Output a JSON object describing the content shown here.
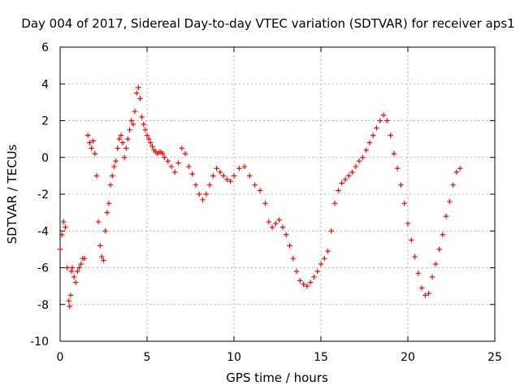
{
  "chart_data": {
    "type": "scatter",
    "title": "Day 004 of 2017, Sidereal Day-to-day VTEC variation (SDTVAR) for receiver aps1",
    "xlabel": "GPS time / hours",
    "ylabel": "SDTVAR / TECUs",
    "xlim": [
      0,
      25
    ],
    "ylim": [
      -10,
      6
    ],
    "xticks": [
      "0",
      "5",
      "10",
      "15",
      "20",
      "25"
    ],
    "yticks": [
      "-10",
      "-8",
      "-6",
      "-4",
      "-2",
      "0",
      "2",
      "4",
      "6"
    ],
    "grid": true,
    "marker": "+",
    "color": "#ff0000",
    "series": [
      {
        "name": "aps1",
        "x": [
          0.0,
          0.1,
          0.2,
          0.3,
          0.4,
          0.5,
          0.55,
          0.6,
          0.65,
          0.7,
          0.8,
          0.9,
          1.0,
          1.1,
          1.2,
          1.3,
          1.4,
          1.6,
          1.7,
          1.8,
          1.9,
          2.0,
          2.1,
          2.2,
          2.3,
          2.4,
          2.5,
          2.6,
          2.7,
          2.8,
          2.9,
          3.0,
          3.1,
          3.2,
          3.3,
          3.4,
          3.5,
          3.6,
          3.7,
          3.8,
          3.9,
          4.0,
          4.1,
          4.2,
          4.3,
          4.4,
          4.5,
          4.6,
          4.7,
          4.8,
          4.9,
          5.0,
          5.1,
          5.2,
          5.3,
          5.4,
          5.5,
          5.6,
          5.7,
          5.8,
          5.9,
          6.0,
          6.2,
          6.4,
          6.6,
          6.8,
          7.0,
          7.2,
          7.4,
          7.6,
          7.8,
          8.0,
          8.2,
          8.4,
          8.6,
          8.8,
          9.0,
          9.2,
          9.4,
          9.6,
          9.8,
          10.0,
          10.3,
          10.6,
          10.9,
          11.2,
          11.5,
          11.8,
          12.0,
          12.2,
          12.4,
          12.6,
          12.8,
          13.0,
          13.2,
          13.4,
          13.6,
          13.8,
          14.0,
          14.2,
          14.4,
          14.6,
          14.8,
          15.0,
          15.2,
          15.4,
          15.6,
          15.8,
          16.0,
          16.2,
          16.4,
          16.6,
          16.8,
          17.0,
          17.2,
          17.4,
          17.6,
          17.8,
          18.0,
          18.2,
          18.4,
          18.6,
          18.8,
          19.0,
          19.2,
          19.4,
          19.6,
          19.8,
          20.0,
          20.2,
          20.4,
          20.6,
          20.8,
          21.0,
          21.2,
          21.4,
          21.6,
          21.8,
          22.0,
          22.2,
          22.4,
          22.6,
          22.8,
          23.0
        ],
        "y": [
          -5.0,
          -4.2,
          -3.5,
          -3.8,
          -6.0,
          -7.8,
          -8.1,
          -7.5,
          -6.2,
          -6.0,
          -6.5,
          -6.8,
          -6.2,
          -6.0,
          -5.8,
          -5.5,
          -5.5,
          1.2,
          0.8,
          0.5,
          0.9,
          0.2,
          -1.0,
          -3.5,
          -4.8,
          -5.4,
          -5.6,
          -4.0,
          -3.0,
          -2.5,
          -1.5,
          -1.0,
          -0.5,
          -0.2,
          0.5,
          1.0,
          1.2,
          0.8,
          0.0,
          0.5,
          1.0,
          1.5,
          2.0,
          1.8,
          2.5,
          3.5,
          3.8,
          3.2,
          2.2,
          1.8,
          1.5,
          1.2,
          1.0,
          0.8,
          0.6,
          0.4,
          0.3,
          0.2,
          0.3,
          0.3,
          0.2,
          0.0,
          -0.2,
          -0.5,
          -0.8,
          -0.3,
          0.5,
          0.2,
          -0.5,
          -0.9,
          -1.5,
          -2.0,
          -2.3,
          -2.0,
          -1.5,
          -1.0,
          -0.6,
          -0.8,
          -1.0,
          -1.2,
          -1.3,
          -1.0,
          -0.6,
          -0.5,
          -1.0,
          -1.5,
          -1.8,
          -2.5,
          -3.5,
          -3.8,
          -3.6,
          -3.4,
          -3.8,
          -4.2,
          -4.8,
          -5.5,
          -6.2,
          -6.7,
          -6.9,
          -7.0,
          -6.8,
          -6.5,
          -6.2,
          -5.8,
          -5.5,
          -5.1,
          -4.0,
          -2.5,
          -1.8,
          -1.4,
          -1.2,
          -1.0,
          -0.8,
          -0.5,
          -0.2,
          0.0,
          0.4,
          0.8,
          1.2,
          1.6,
          2.0,
          2.3,
          2.0,
          1.2,
          0.2,
          -0.6,
          -1.5,
          -2.5,
          -3.6,
          -4.5,
          -5.4,
          -6.3,
          -7.1,
          -7.5,
          -7.4,
          -6.5,
          -5.8,
          -5.0,
          -4.2,
          -3.2,
          -2.4,
          -1.5,
          -0.8,
          -0.6
        ]
      }
    ]
  }
}
